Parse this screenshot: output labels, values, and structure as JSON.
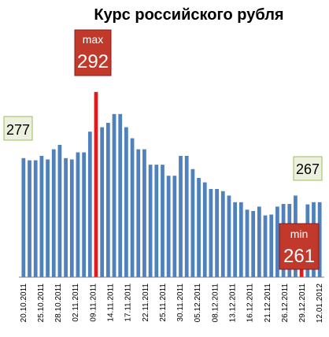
{
  "chart_data": {
    "type": "bar",
    "title": "Курс российского рубля",
    "xlabel": "",
    "ylabel": "",
    "ylim": [
      250,
      295
    ],
    "grid": false,
    "legend": "none",
    "x_ticks": [
      "20.10.2011",
      "25.10.2011",
      "28.10.2011",
      "02.11.2011",
      "09.11.2011",
      "14.11.2011",
      "17.11.2011",
      "22.11.2011",
      "25.11.2011",
      "30.11.2011",
      "05.12.2011",
      "08.12.2011",
      "13.12.2011",
      "16.12.2011",
      "21.12.2011",
      "26.12.2011",
      "29.12.2011",
      "12.01.2012"
    ],
    "values": [
      277,
      276.5,
      276.5,
      277.5,
      276.7,
      279,
      280,
      277,
      276.7,
      278.3,
      278.3,
      283,
      292,
      284,
      285,
      287,
      287,
      284,
      281.5,
      279,
      279,
      275.5,
      275.5,
      275.5,
      273,
      273,
      277.5,
      277.5,
      274.5,
      272.5,
      271.5,
      270,
      270,
      269.5,
      268.5,
      267,
      267,
      265.3,
      265,
      266,
      264,
      264.2,
      266,
      266.6,
      266.6,
      268.5,
      261,
      266.5,
      267,
      267
    ],
    "series_color": "#4F81BD",
    "highlight_color": "#E31A1C",
    "annotations": {
      "start": {
        "label": "277",
        "index": 0
      },
      "max": {
        "name": "max",
        "label": "292",
        "index": 12
      },
      "min": {
        "name": "min",
        "label": "261",
        "index": 46
      },
      "end": {
        "label": "267",
        "index": 49
      }
    }
  }
}
